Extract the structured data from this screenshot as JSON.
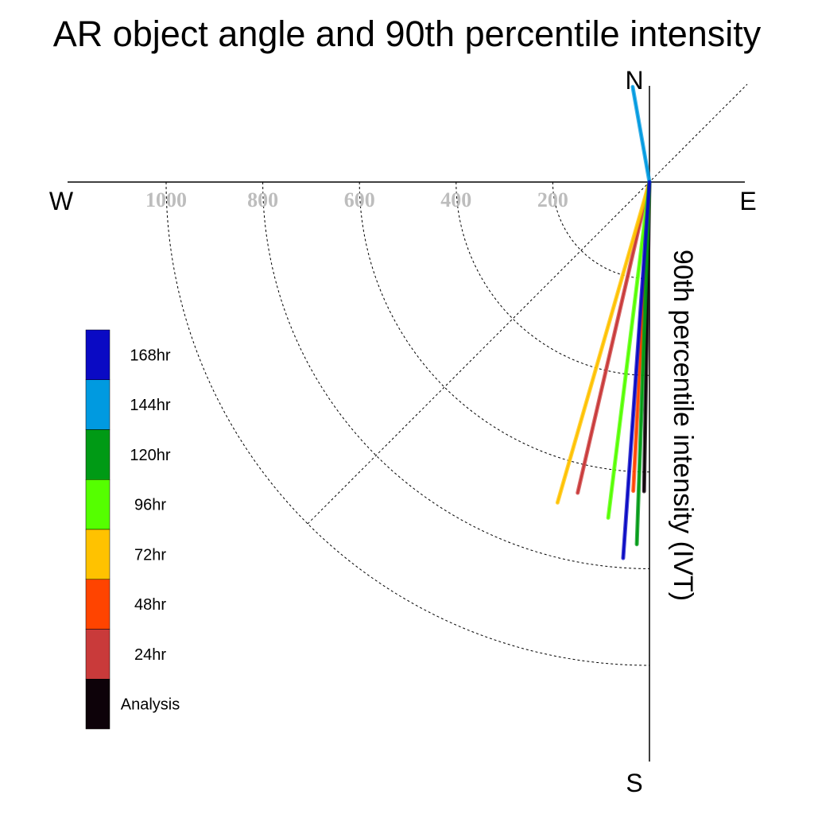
{
  "chart_data": {
    "type": "polar-line",
    "title": "AR object angle and 90th percentile intensity",
    "radial_axis_label": "90th percentile intensity (IVT)",
    "compass": {
      "north": "N",
      "south": "S",
      "east": "E",
      "west": "W"
    },
    "radial_ticks": [
      200,
      400,
      600,
      800,
      1000
    ],
    "radial_tick_labels": [
      "200",
      "400",
      "600",
      "800",
      "1000"
    ],
    "radial_range": [
      0,
      1000
    ],
    "angle_units": "degrees clockwise from north",
    "grid": true,
    "legend_placement": "left",
    "series": [
      {
        "name": "Analysis",
        "color": "#0d0209",
        "angle_deg": 181,
        "intensity": 640
      },
      {
        "name": "24hr",
        "color": "#c93a3a",
        "angle_deg": 193,
        "intensity": 660
      },
      {
        "name": "48hr",
        "color": "#ff4400",
        "angle_deg": 183,
        "intensity": 640
      },
      {
        "name": "72hr",
        "color": "#ffc200",
        "angle_deg": 196,
        "intensity": 690
      },
      {
        "name": "96hr",
        "color": "#55ff00",
        "angle_deg": 187,
        "intensity": 700
      },
      {
        "name": "120hr",
        "color": "#009a15",
        "angle_deg": 182,
        "intensity": 750
      },
      {
        "name": "144hr",
        "color": "#009ae0",
        "angle_deg": 350,
        "intensity": 200
      },
      {
        "name": "168hr",
        "color": "#0a0ac4",
        "angle_deg": 184,
        "intensity": 780
      }
    ]
  },
  "legend": {
    "items": [
      {
        "label": "168hr",
        "color": "#0a0ac4"
      },
      {
        "label": "144hr",
        "color": "#009ae0"
      },
      {
        "label": "120hr",
        "color": "#009a15"
      },
      {
        "label": "96hr",
        "color": "#55ff00"
      },
      {
        "label": "72hr",
        "color": "#ffc200"
      },
      {
        "label": "48hr",
        "color": "#ff4400"
      },
      {
        "label": "24hr",
        "color": "#c93a3a"
      },
      {
        "label": "Analysis",
        "color": "#0d0209"
      }
    ]
  }
}
